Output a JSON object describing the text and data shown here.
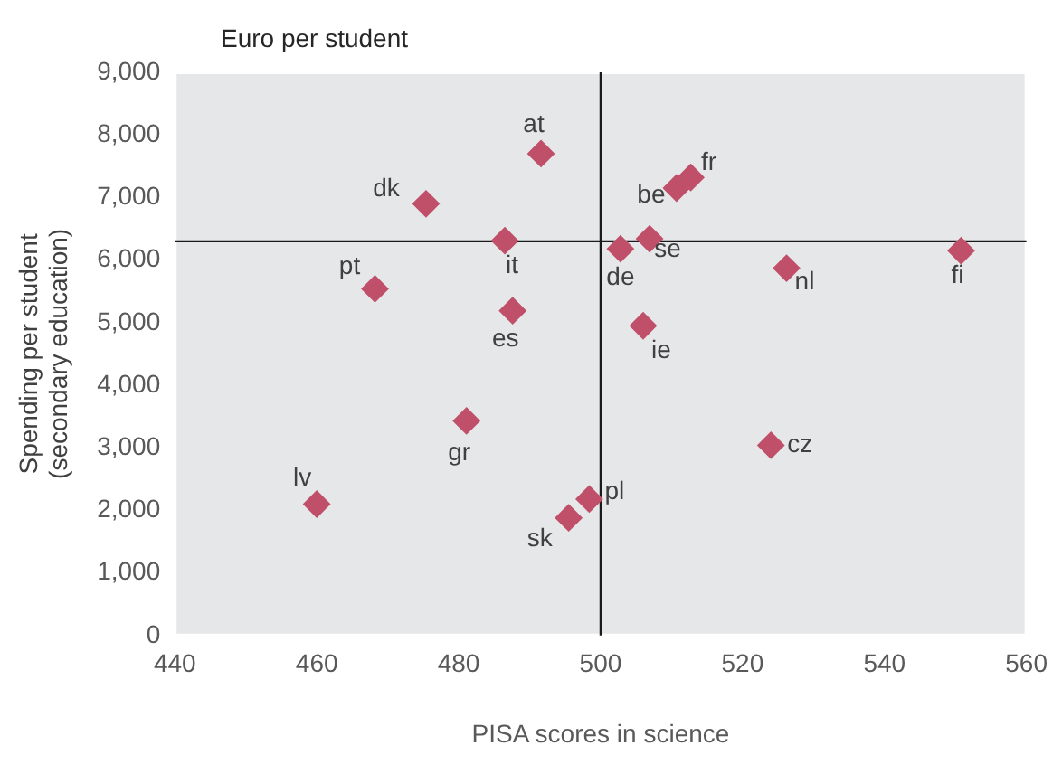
{
  "chart_data": {
    "type": "scatter",
    "xlabel": "PISA scores in science",
    "ylabel": "Spending per student\n(secondary education)",
    "annotations": [
      "Euro per student",
      {
        "text": "at",
        "x": 491.6,
        "y": 7700
      },
      {
        "text": "dk",
        "x": 475.4,
        "y": 6900
      },
      {
        "text": "be",
        "x": 510.7,
        "y": 7150
      },
      {
        "text": "fr",
        "x": 512.7,
        "y": 7320
      },
      {
        "text": "it",
        "x": 486.5,
        "y": 6310
      },
      {
        "text": "de",
        "x": 502.8,
        "y": 6180
      },
      {
        "text": "se",
        "x": 506.9,
        "y": 6340
      },
      {
        "text": "nl",
        "x": 526.2,
        "y": 5870
      },
      {
        "text": "fi",
        "x": 550.8,
        "y": 6150
      },
      {
        "text": "pt",
        "x": 468.2,
        "y": 5540
      },
      {
        "text": "es",
        "x": 487.6,
        "y": 5190
      },
      {
        "text": "ie",
        "x": 506,
        "y": 4950
      },
      {
        "text": "gr",
        "x": 481.1,
        "y": 3430
      },
      {
        "text": "cz",
        "x": 524,
        "y": 3040
      },
      {
        "text": "lv",
        "x": 460,
        "y": 2100
      },
      {
        "text": "pl",
        "x": 498.4,
        "y": 2180
      },
      {
        "text": "sk",
        "x": 495.5,
        "y": 1880
      }
    ],
    "series": [
      {
        "color": "#c0506a",
        "x": [
          491.6,
          475.4,
          510.7,
          512.7,
          486.5,
          502.8,
          506.9,
          526.2,
          550.8,
          468.2,
          487.6,
          506,
          481.1,
          524,
          460,
          498.4,
          495.5
        ],
        "values": [
          7700,
          6900,
          7150,
          7320,
          6310,
          6180,
          6340,
          5870,
          6150,
          5540,
          5190,
          4950,
          3430,
          3040,
          2100,
          2180,
          1880
        ]
      }
    ],
    "xlim": [
      440,
      560
    ],
    "xticks": [
      440,
      460,
      480,
      500,
      520,
      540,
      560
    ],
    "ylim": [
      0,
      9000
    ],
    "yticks": [
      0,
      {
        "value": 1000,
        "label": "1,000"
      },
      {
        "value": 2000,
        "label": "2,000"
      },
      {
        "value": 3000,
        "label": "3,000"
      },
      {
        "value": 4000,
        "label": "4,000"
      },
      {
        "value": 5000,
        "label": "5,000"
      },
      {
        "value": 6000,
        "label": "6,000"
      },
      {
        "value": 7000,
        "label": "7,000"
      },
      {
        "value": 8000,
        "label": "8,000"
      },
      {
        "value": 9000,
        "label": "9,000"
      }
    ],
    "ref_lines": [
      {
        "axis": "x",
        "value": 500,
        "color": "#1a1a1a"
      },
      {
        "axis": "y",
        "value": 6300,
        "color": "#1a1a1a"
      }
    ],
    "legend": false,
    "marker": "diamond"
  }
}
